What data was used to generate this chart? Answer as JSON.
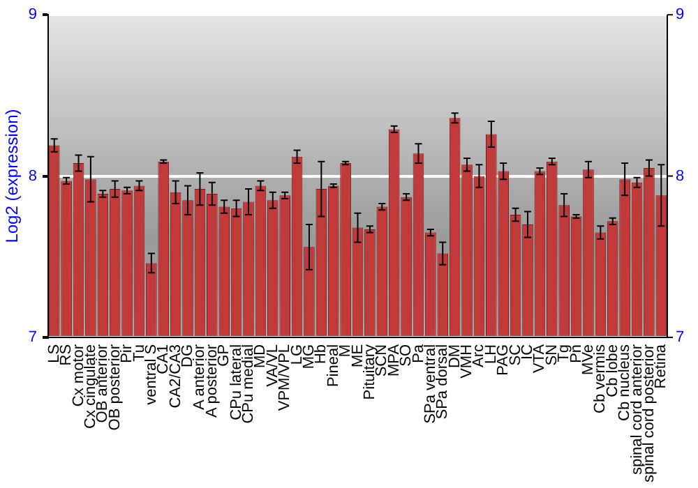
{
  "chart_data": {
    "type": "bar",
    "ylabel": "Log2 (expression)",
    "categories": [
      "LS",
      "RS",
      "Cx motor",
      "Cx cingulate",
      "OB anterior",
      "OB posterior",
      "Pir",
      "Tu",
      "ventral S",
      "CA1",
      "CA2/CA3",
      "DG",
      "A anterior",
      "A posterior",
      "GP",
      "CPu lateral",
      "CPu medial",
      "MD",
      "VA/VL",
      "VPM/VPL",
      "LG",
      "MG",
      "Hb",
      "Pineal",
      "M",
      "ME",
      "Pituitary",
      "SCN",
      "MPA",
      "SO",
      "Pa",
      "SPa ventral",
      "SPa dorsal",
      "DM",
      "VMH",
      "Arc",
      "LH",
      "PAG",
      "SC",
      "IC",
      "VTA",
      "SN",
      "Tg",
      "Pn",
      "MVe",
      "Cb vermis",
      "Cb lobe",
      "Cb nucleus",
      "spinal cord anterior",
      "spinal cord posterior",
      "Retina"
    ],
    "values": [
      8.19,
      7.97,
      8.08,
      7.98,
      7.89,
      7.92,
      7.91,
      7.94,
      7.46,
      8.09,
      7.9,
      7.85,
      7.92,
      7.89,
      7.81,
      7.8,
      7.84,
      7.94,
      7.85,
      7.88,
      8.12,
      7.56,
      7.92,
      7.94,
      8.08,
      7.68,
      7.67,
      7.81,
      8.29,
      7.87,
      8.14,
      7.65,
      7.52,
      8.36,
      8.07,
      8.0,
      8.26,
      8.03,
      7.76,
      7.7,
      8.03,
      8.09,
      7.82,
      7.75,
      8.04,
      7.65,
      7.72,
      7.98,
      7.96,
      8.05,
      7.88
    ],
    "errors": [
      0.04,
      0.02,
      0.05,
      0.14,
      0.02,
      0.05,
      0.02,
      0.03,
      0.06,
      0.01,
      0.07,
      0.09,
      0.1,
      0.07,
      0.04,
      0.05,
      0.08,
      0.03,
      0.05,
      0.02,
      0.04,
      0.14,
      0.17,
      0.01,
      0.01,
      0.09,
      0.02,
      0.02,
      0.02,
      0.02,
      0.06,
      0.02,
      0.07,
      0.03,
      0.04,
      0.07,
      0.08,
      0.05,
      0.04,
      0.08,
      0.02,
      0.02,
      0.07,
      0.01,
      0.05,
      0.04,
      0.02,
      0.1,
      0.03,
      0.05,
      0.19
    ],
    "color": "#c0393b",
    "ylim": [
      7,
      9
    ],
    "yticks": [
      7,
      8,
      9
    ],
    "y2lim": [
      7,
      9
    ],
    "y2ticks": [
      7,
      8,
      9
    ],
    "grid": "y",
    "legend": false
  }
}
